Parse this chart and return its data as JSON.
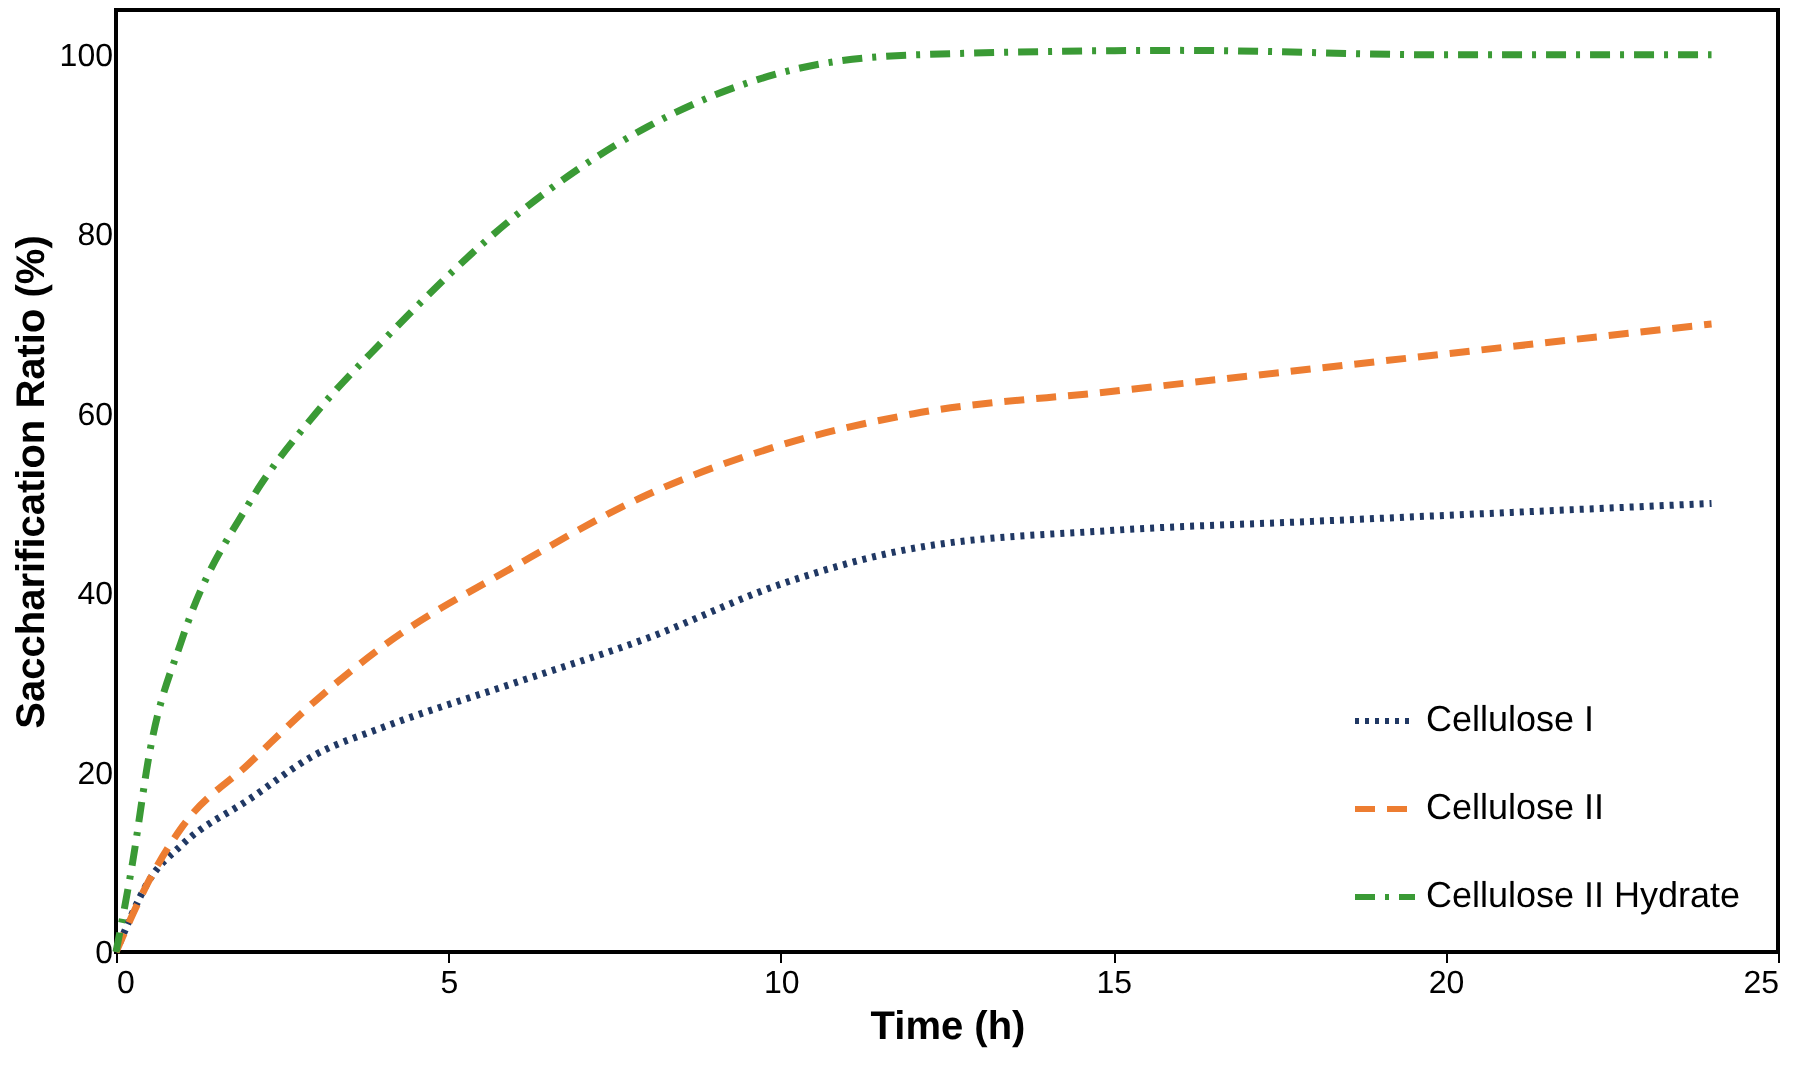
{
  "chart_data": {
    "type": "line",
    "xlabel": "Time (h)",
    "ylabel": "Saccharification Ratio (%)",
    "xlim": [
      0,
      25
    ],
    "xticks": [
      0,
      5,
      10,
      15,
      20,
      25
    ],
    "ylim": [
      0,
      105
    ],
    "yticks": [
      0,
      20,
      40,
      60,
      80,
      100
    ],
    "grid": false,
    "legend": "bottom right",
    "marker": "none",
    "series": [
      {
        "name": "Cellulose I",
        "color": "#203864",
        "line_style": "dotted",
        "x": [
          0,
          0.5,
          1,
          2,
          3,
          4,
          6,
          8,
          10,
          12,
          15,
          18,
          21,
          24
        ],
        "values": [
          0,
          8,
          12,
          17,
          22,
          25,
          30,
          35,
          41,
          45,
          47,
          48,
          49,
          50
        ]
      },
      {
        "name": "Cellulose II",
        "color": "#ed7d31",
        "line_style": "dashed",
        "x": [
          0,
          0.5,
          1,
          2,
          3,
          4,
          6,
          8,
          10,
          12,
          15,
          18,
          21,
          24
        ],
        "values": [
          0,
          8,
          14,
          21,
          28,
          34,
          43,
          51,
          56.5,
          60,
          62.5,
          65,
          67.5,
          70
        ]
      },
      {
        "name": "Cellulose II Hydrate",
        "color": "#3a9a35",
        "line_style": "dashdot",
        "x": [
          0,
          0.25,
          0.5,
          1,
          2,
          3,
          4,
          6,
          8,
          10,
          12,
          16,
          20,
          24
        ],
        "values": [
          0,
          10,
          22,
          35,
          50,
          60,
          68,
          82,
          92,
          98,
          100,
          100.5,
          100,
          100
        ]
      }
    ]
  }
}
